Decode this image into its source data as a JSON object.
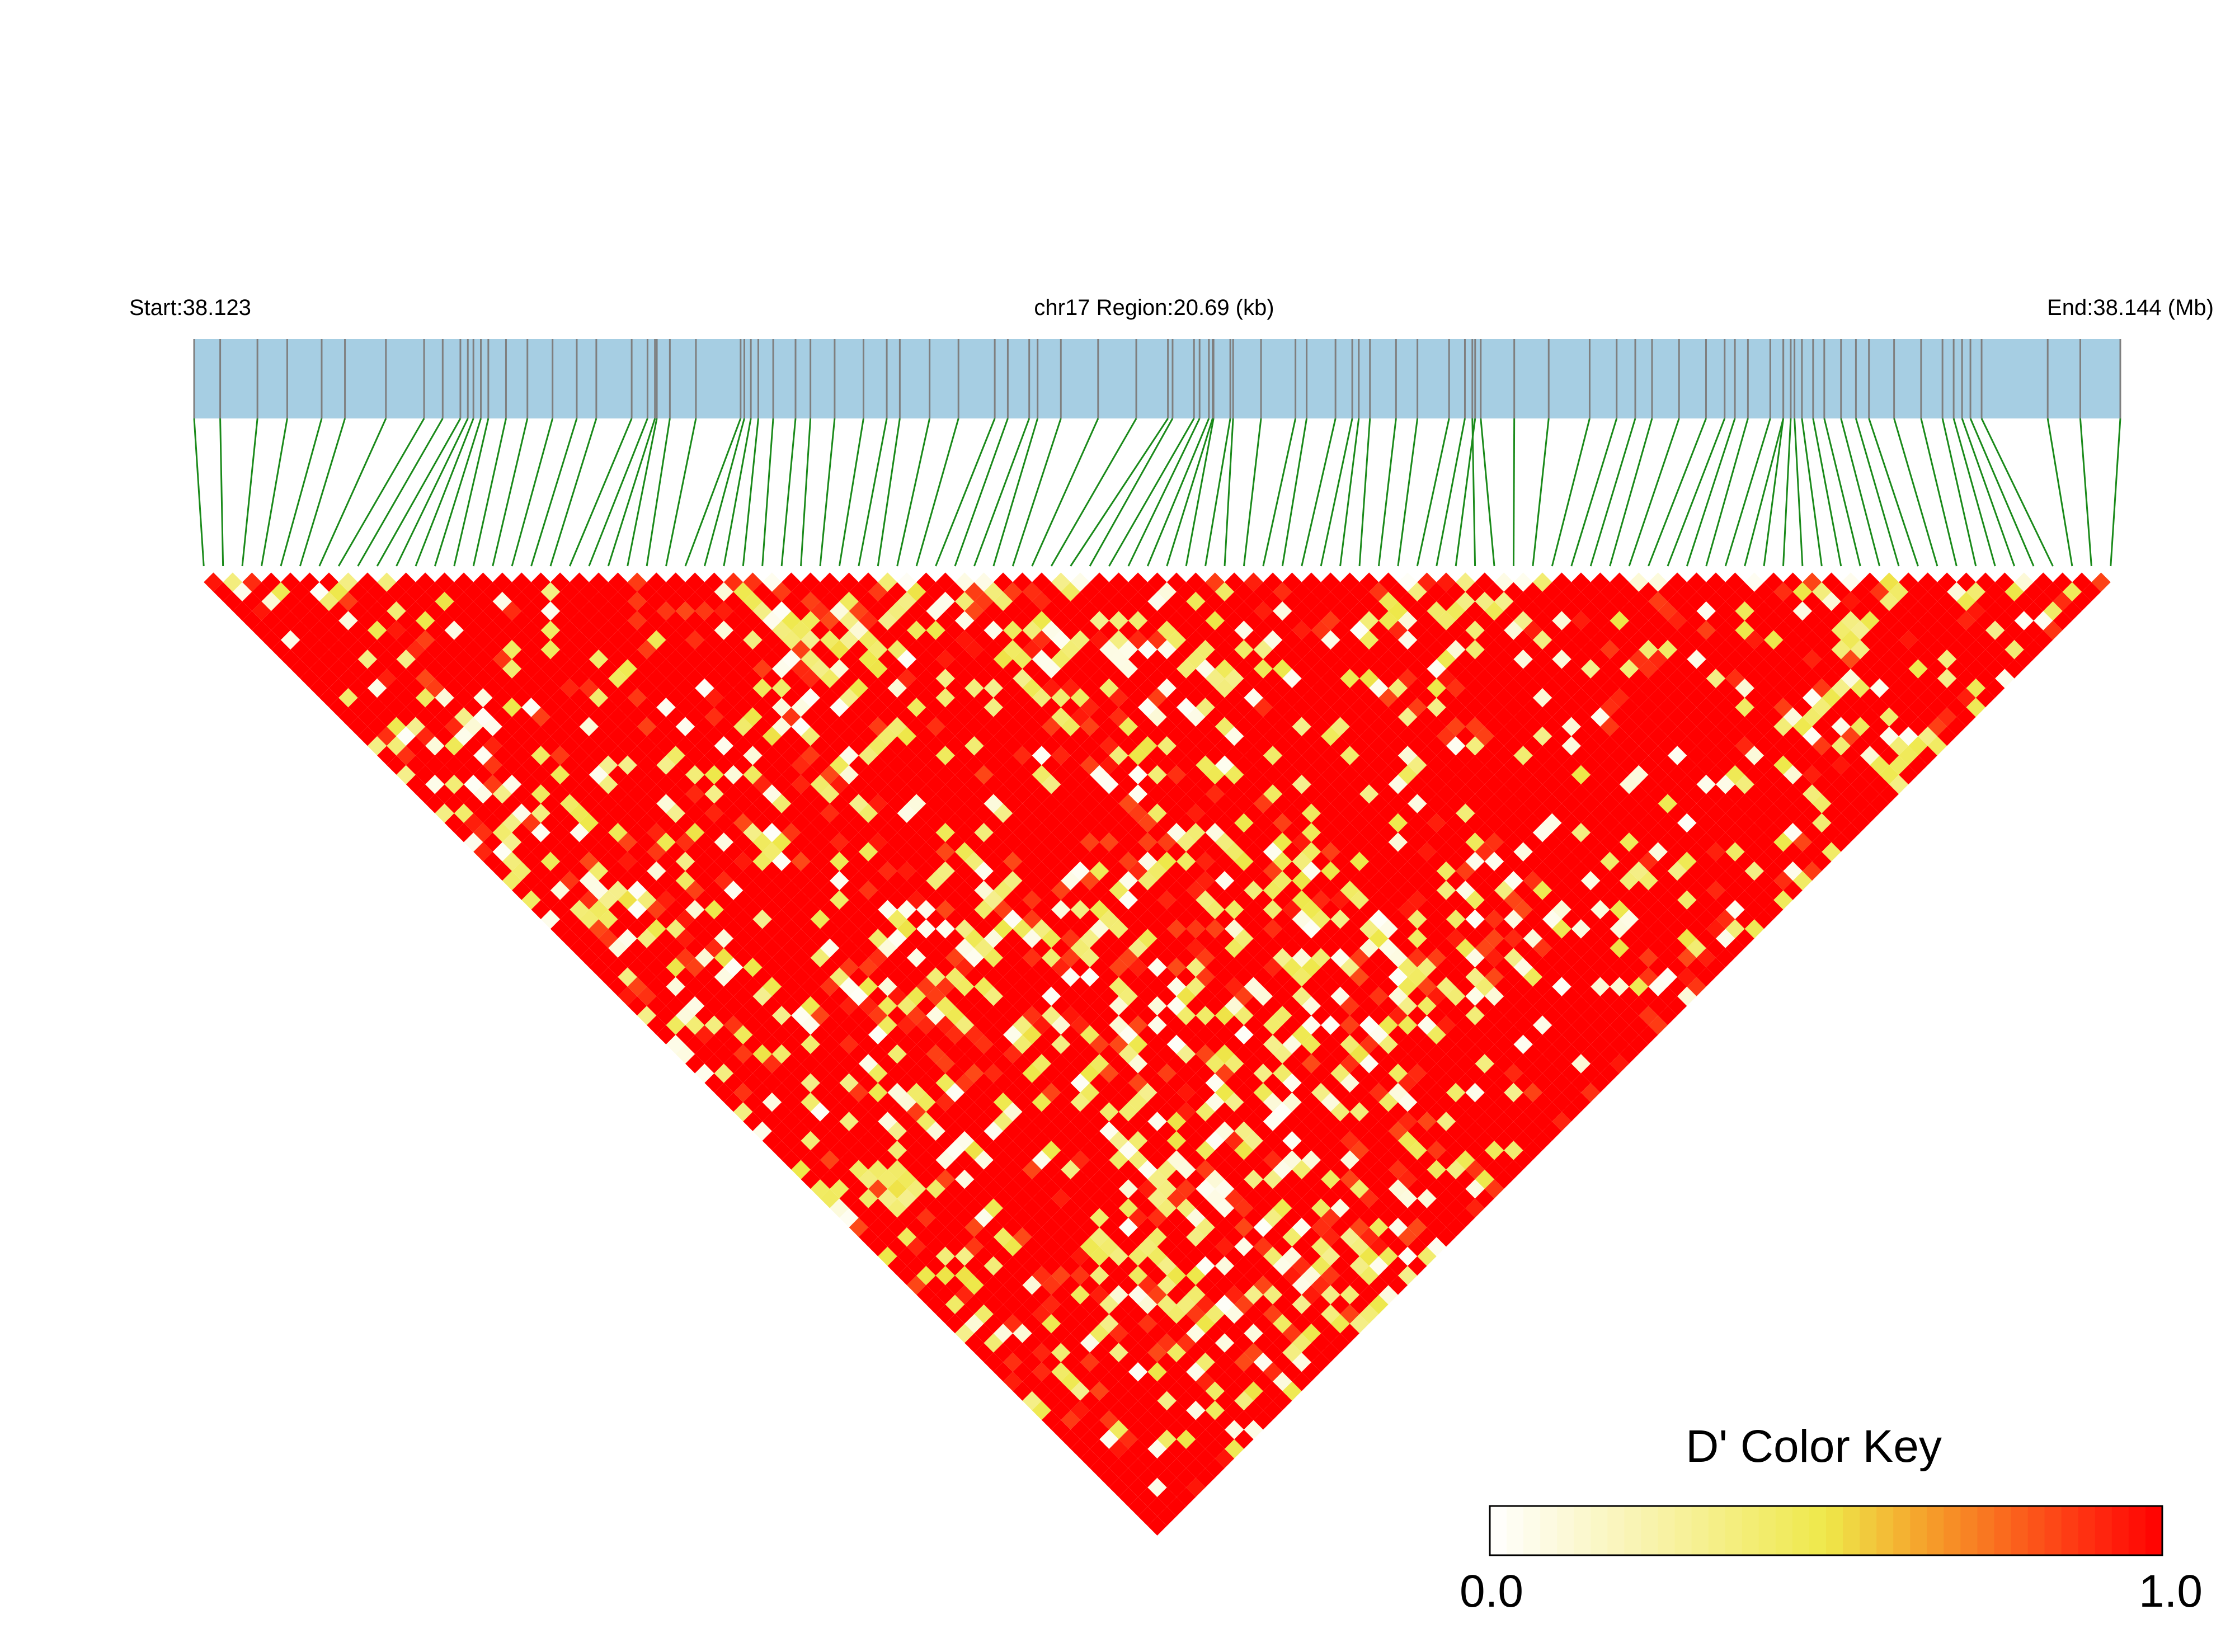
{
  "chart_data": {
    "type": "heatmap",
    "subtype": "ld-triangle",
    "header": {
      "start_label": "Start:38.123",
      "region_label": "chr17 Region:20.69 (kb)",
      "end_label": "End:38.144 (Mb)"
    },
    "region": {
      "start_mb": 38.123,
      "end_mb": 38.144,
      "length_kb": 20.69
    },
    "snp_count": 100,
    "snp_positions_kb": [
      0,
      0.28,
      0.68,
      1.0,
      1.37,
      1.62,
      2.06,
      2.47,
      2.67,
      2.86,
      2.94,
      3.0,
      3.08,
      3.16,
      3.35,
      3.58,
      3.85,
      4.11,
      4.32,
      4.7,
      4.87,
      4.95,
      4.97,
      5.11,
      5.39,
      5.87,
      5.91,
      5.98,
      6.06,
      6.22,
      6.46,
      6.62,
      6.88,
      7.19,
      7.44,
      7.58,
      7.9,
      8.21,
      8.6,
      8.74,
      8.97,
      9.06,
      9.31,
      9.71,
      10.12,
      10.46,
      10.51,
      10.74,
      10.8,
      10.9,
      10.94,
      10.95,
      11.13,
      11.16,
      11.46,
      11.83,
      11.95,
      12.26,
      12.44,
      12.51,
      12.63,
      12.91,
      13.14,
      13.48,
      13.65,
      13.76,
      13.73,
      13.82,
      14.18,
      14.55,
      14.99,
      15.28,
      15.48,
      15.66,
      15.95,
      16.24,
      16.44,
      16.55,
      16.69,
      16.93,
      17.07,
      17.07,
      17.15,
      17.19,
      17.27,
      17.39,
      17.51,
      17.69,
      17.85,
      17.99,
      18.26,
      18.55,
      18.78,
      18.9,
      18.99,
      19.08,
      19.2,
      19.91,
      20.26,
      20.69
    ],
    "value_label": "D'",
    "value_range": [
      0.0,
      1.0
    ],
    "matrix_note": "pairwise D' for 100 SNPs (4950 pairs); values deterministic pseudo-random approximation, shown as colored diamonds",
    "color_key": {
      "title": "D' Color Key",
      "min_label": "0.0",
      "max_label": "1.0",
      "stops": [
        "#ffffff",
        "#f8f2a8",
        "#eee84a",
        "#f6a02a",
        "#ff2a10",
        "#ff0000"
      ]
    },
    "colors": {
      "track_fill": "#a6cee3",
      "snp_tick": "#7f7f7f",
      "connector": "#1a8a1a",
      "ld_high": "#ff0000"
    }
  }
}
